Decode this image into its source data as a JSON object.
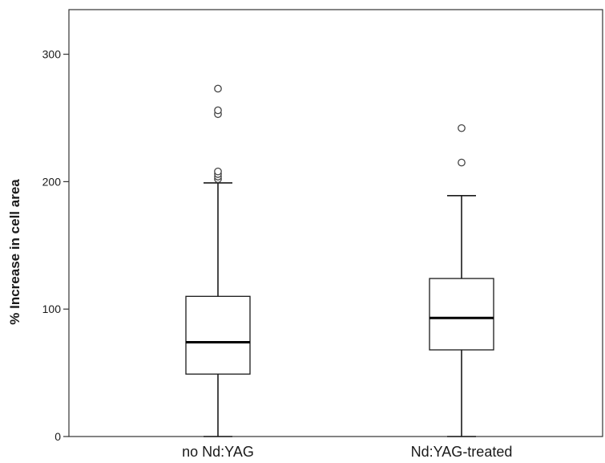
{
  "chart_data": {
    "type": "boxplot",
    "title": "",
    "xlabel": "",
    "ylabel": "% Increase in cell area",
    "ylim": [
      0,
      335
    ],
    "yticks": [
      0,
      100,
      200,
      300
    ],
    "grid": false,
    "legend": "none",
    "categories": [
      "no Nd:YAG",
      "Nd:YAG-treated"
    ],
    "boxes": [
      {
        "category": "no Nd:YAG",
        "whisker_low": 0,
        "q1": 49,
        "median": 74,
        "q3": 110,
        "whisker_high": 199,
        "outliers": [
          202,
          204,
          206,
          208,
          253,
          256,
          273
        ]
      },
      {
        "category": "Nd:YAG-treated",
        "whisker_low": 0,
        "q1": 68,
        "median": 93,
        "q3": 124,
        "whisker_high": 189,
        "outliers": [
          215,
          242
        ]
      }
    ]
  }
}
